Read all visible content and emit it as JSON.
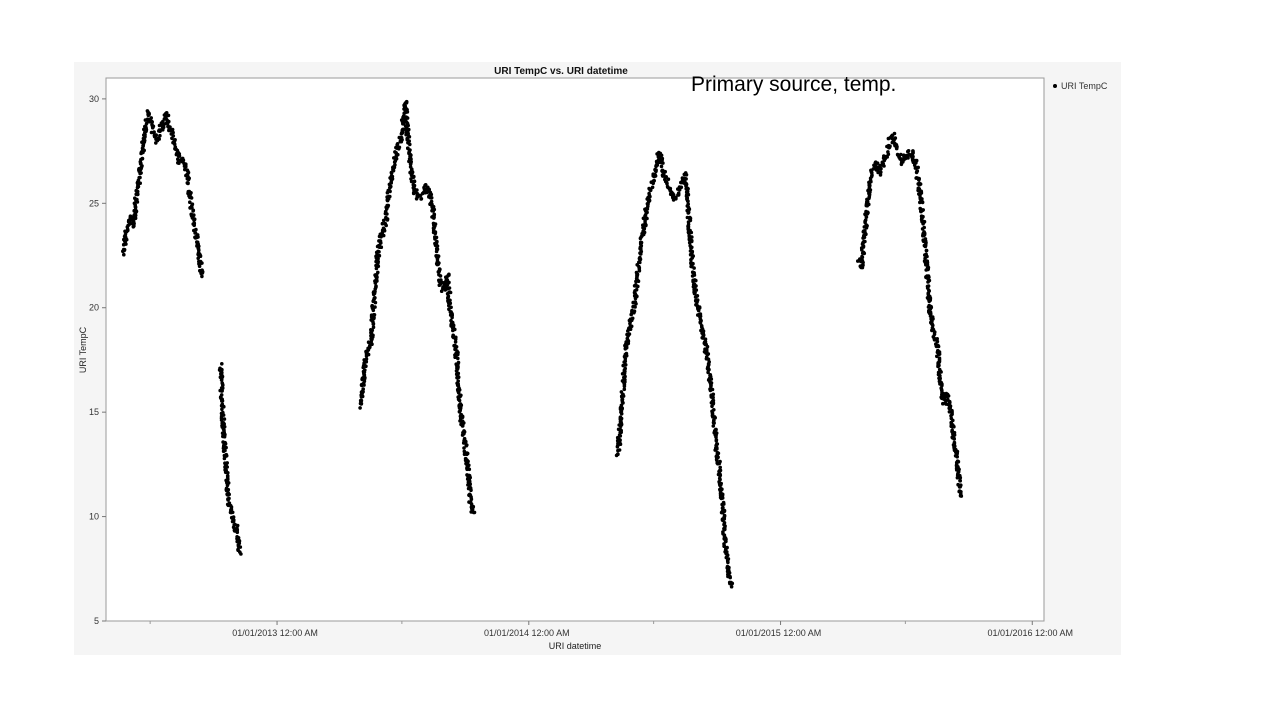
{
  "chart_data": {
    "type": "scatter",
    "title": "URI TempC vs. URI datetime",
    "xlabel": "URI datetime",
    "ylabel": "URI TempC",
    "xlim": [
      "2012-04-28",
      "2016-01-18"
    ],
    "ylim": [
      5,
      31
    ],
    "y_ticks": [
      5,
      10,
      15,
      20,
      25,
      30
    ],
    "x_ticks": [
      {
        "date": "2013-01-01",
        "label": "01/01/2013 12:00 AM"
      },
      {
        "date": "2014-01-01",
        "label": "01/01/2014 12:00 AM"
      },
      {
        "date": "2015-01-01",
        "label": "01/01/2015 12:00 AM"
      },
      {
        "date": "2016-01-01",
        "label": "01/01/2016 12:00 AM"
      }
    ],
    "x_minor_ticks": [
      "2012-07-01",
      "2013-07-01",
      "2014-07-01",
      "2015-07-01"
    ],
    "legend": {
      "position": "right",
      "entries": [
        "URI TempC"
      ]
    },
    "marker_color": "#000000",
    "series": [
      {
        "name": "URI TempC",
        "segments": [
          [
            {
              "x": "2012-05-23",
              "y": 22.7
            },
            {
              "x": "2012-05-28",
              "y": 23.8
            },
            {
              "x": "2012-06-02",
              "y": 24.2
            },
            {
              "x": "2012-06-07",
              "y": 24.0
            },
            {
              "x": "2012-06-12",
              "y": 25.5
            },
            {
              "x": "2012-06-17",
              "y": 26.6
            },
            {
              "x": "2012-06-23",
              "y": 28.5
            },
            {
              "x": "2012-06-29",
              "y": 29.3
            },
            {
              "x": "2012-07-05",
              "y": 28.6
            },
            {
              "x": "2012-07-10",
              "y": 28.0
            },
            {
              "x": "2012-07-15",
              "y": 28.5
            },
            {
              "x": "2012-07-20",
              "y": 28.8
            },
            {
              "x": "2012-07-25",
              "y": 29.2
            },
            {
              "x": "2012-07-30",
              "y": 28.5
            },
            {
              "x": "2012-08-05",
              "y": 28.0
            },
            {
              "x": "2012-08-11",
              "y": 27.1
            },
            {
              "x": "2012-08-17",
              "y": 27.0
            },
            {
              "x": "2012-08-23",
              "y": 26.5
            },
            {
              "x": "2012-08-30",
              "y": 24.8
            },
            {
              "x": "2012-09-05",
              "y": 23.5
            },
            {
              "x": "2012-09-10",
              "y": 22.5
            },
            {
              "x": "2012-09-14",
              "y": 21.5
            }
          ],
          [
            {
              "x": "2012-10-11",
              "y": 17.2
            },
            {
              "x": "2012-10-15",
              "y": 14.5
            },
            {
              "x": "2012-10-19",
              "y": 12.3
            },
            {
              "x": "2012-10-23",
              "y": 10.8
            },
            {
              "x": "2012-10-27",
              "y": 10.0
            },
            {
              "x": "2012-11-01",
              "y": 9.6
            },
            {
              "x": "2012-11-05",
              "y": 9.2
            },
            {
              "x": "2012-11-08",
              "y": 8.3
            }
          ],
          [
            {
              "x": "2013-05-02",
              "y": 15.3
            },
            {
              "x": "2013-05-07",
              "y": 16.8
            },
            {
              "x": "2013-05-12",
              "y": 18.0
            },
            {
              "x": "2013-05-17",
              "y": 18.3
            },
            {
              "x": "2013-05-22",
              "y": 20.5
            },
            {
              "x": "2013-05-27",
              "y": 22.5
            },
            {
              "x": "2013-06-02",
              "y": 23.5
            },
            {
              "x": "2013-06-08",
              "y": 24.3
            },
            {
              "x": "2013-06-14",
              "y": 26.0
            },
            {
              "x": "2013-06-20",
              "y": 27.0
            },
            {
              "x": "2013-06-26",
              "y": 27.8
            },
            {
              "x": "2013-07-02",
              "y": 28.5
            },
            {
              "x": "2013-07-06",
              "y": 29.8
            },
            {
              "x": "2013-07-10",
              "y": 28.0
            },
            {
              "x": "2013-07-15",
              "y": 26.5
            },
            {
              "x": "2013-07-20",
              "y": 25.5
            },
            {
              "x": "2013-07-27",
              "y": 25.3
            },
            {
              "x": "2013-08-04",
              "y": 25.8
            },
            {
              "x": "2013-08-10",
              "y": 25.5
            },
            {
              "x": "2013-08-16",
              "y": 24.5
            },
            {
              "x": "2013-08-21",
              "y": 22.5
            },
            {
              "x": "2013-08-26",
              "y": 21.2
            },
            {
              "x": "2013-09-01",
              "y": 20.8
            },
            {
              "x": "2013-09-05",
              "y": 21.5
            },
            {
              "x": "2013-09-09",
              "y": 20.0
            },
            {
              "x": "2013-09-14",
              "y": 18.8
            },
            {
              "x": "2013-09-19",
              "y": 17.5
            },
            {
              "x": "2013-09-24",
              "y": 15.0
            },
            {
              "x": "2013-09-29",
              "y": 14.0
            },
            {
              "x": "2013-10-04",
              "y": 12.5
            },
            {
              "x": "2013-10-09",
              "y": 10.5
            },
            {
              "x": "2013-10-13",
              "y": 10.2
            }
          ],
          [
            {
              "x": "2014-05-10",
              "y": 13.0
            },
            {
              "x": "2014-05-15",
              "y": 14.8
            },
            {
              "x": "2014-05-20",
              "y": 17.5
            },
            {
              "x": "2014-05-25",
              "y": 18.8
            },
            {
              "x": "2014-05-30",
              "y": 19.5
            },
            {
              "x": "2014-06-04",
              "y": 20.5
            },
            {
              "x": "2014-06-09",
              "y": 22.0
            },
            {
              "x": "2014-06-15",
              "y": 23.5
            },
            {
              "x": "2014-06-21",
              "y": 24.8
            },
            {
              "x": "2014-06-27",
              "y": 25.8
            },
            {
              "x": "2014-07-03",
              "y": 26.5
            },
            {
              "x": "2014-07-09",
              "y": 27.3
            },
            {
              "x": "2014-07-15",
              "y": 26.5
            },
            {
              "x": "2014-07-21",
              "y": 26.0
            },
            {
              "x": "2014-07-27",
              "y": 25.5
            },
            {
              "x": "2014-08-03",
              "y": 25.3
            },
            {
              "x": "2014-08-10",
              "y": 25.8
            },
            {
              "x": "2014-08-16",
              "y": 26.3
            },
            {
              "x": "2014-08-21",
              "y": 24.5
            },
            {
              "x": "2014-08-26",
              "y": 22.0
            },
            {
              "x": "2014-09-01",
              "y": 20.5
            },
            {
              "x": "2014-09-07",
              "y": 19.5
            },
            {
              "x": "2014-09-12",
              "y": 18.5
            },
            {
              "x": "2014-09-18",
              "y": 17.5
            },
            {
              "x": "2014-09-23",
              "y": 16.0
            },
            {
              "x": "2014-09-28",
              "y": 14.0
            },
            {
              "x": "2014-10-03",
              "y": 12.5
            },
            {
              "x": "2014-10-08",
              "y": 11.0
            },
            {
              "x": "2014-10-13",
              "y": 8.5
            },
            {
              "x": "2014-10-18",
              "y": 7.2
            },
            {
              "x": "2014-10-23",
              "y": 6.8
            }
          ],
          [
            {
              "x": "2015-04-25",
              "y": 22.3
            },
            {
              "x": "2015-04-29",
              "y": 22.0
            },
            {
              "x": "2015-05-04",
              "y": 24.0
            },
            {
              "x": "2015-05-09",
              "y": 25.5
            },
            {
              "x": "2015-05-14",
              "y": 26.5
            },
            {
              "x": "2015-05-19",
              "y": 26.8
            },
            {
              "x": "2015-05-25",
              "y": 26.5
            },
            {
              "x": "2015-06-01",
              "y": 27.0
            },
            {
              "x": "2015-06-07",
              "y": 27.8
            },
            {
              "x": "2015-06-13",
              "y": 28.2
            },
            {
              "x": "2015-06-19",
              "y": 27.5
            },
            {
              "x": "2015-06-26",
              "y": 27.0
            },
            {
              "x": "2015-07-03",
              "y": 27.3
            },
            {
              "x": "2015-07-10",
              "y": 27.5
            },
            {
              "x": "2015-07-17",
              "y": 26.8
            },
            {
              "x": "2015-07-23",
              "y": 25.3
            },
            {
              "x": "2015-07-28",
              "y": 23.5
            },
            {
              "x": "2015-08-02",
              "y": 21.5
            },
            {
              "x": "2015-08-06",
              "y": 19.8
            },
            {
              "x": "2015-08-11",
              "y": 18.8
            },
            {
              "x": "2015-08-16",
              "y": 18.3
            },
            {
              "x": "2015-08-21",
              "y": 16.5
            },
            {
              "x": "2015-08-26",
              "y": 15.5
            },
            {
              "x": "2015-08-31",
              "y": 15.8
            },
            {
              "x": "2015-09-05",
              "y": 15.0
            },
            {
              "x": "2015-09-10",
              "y": 13.5
            },
            {
              "x": "2015-09-15",
              "y": 12.3
            },
            {
              "x": "2015-09-19",
              "y": 11.0
            }
          ]
        ]
      }
    ]
  },
  "annotation": "Primary source, temp."
}
